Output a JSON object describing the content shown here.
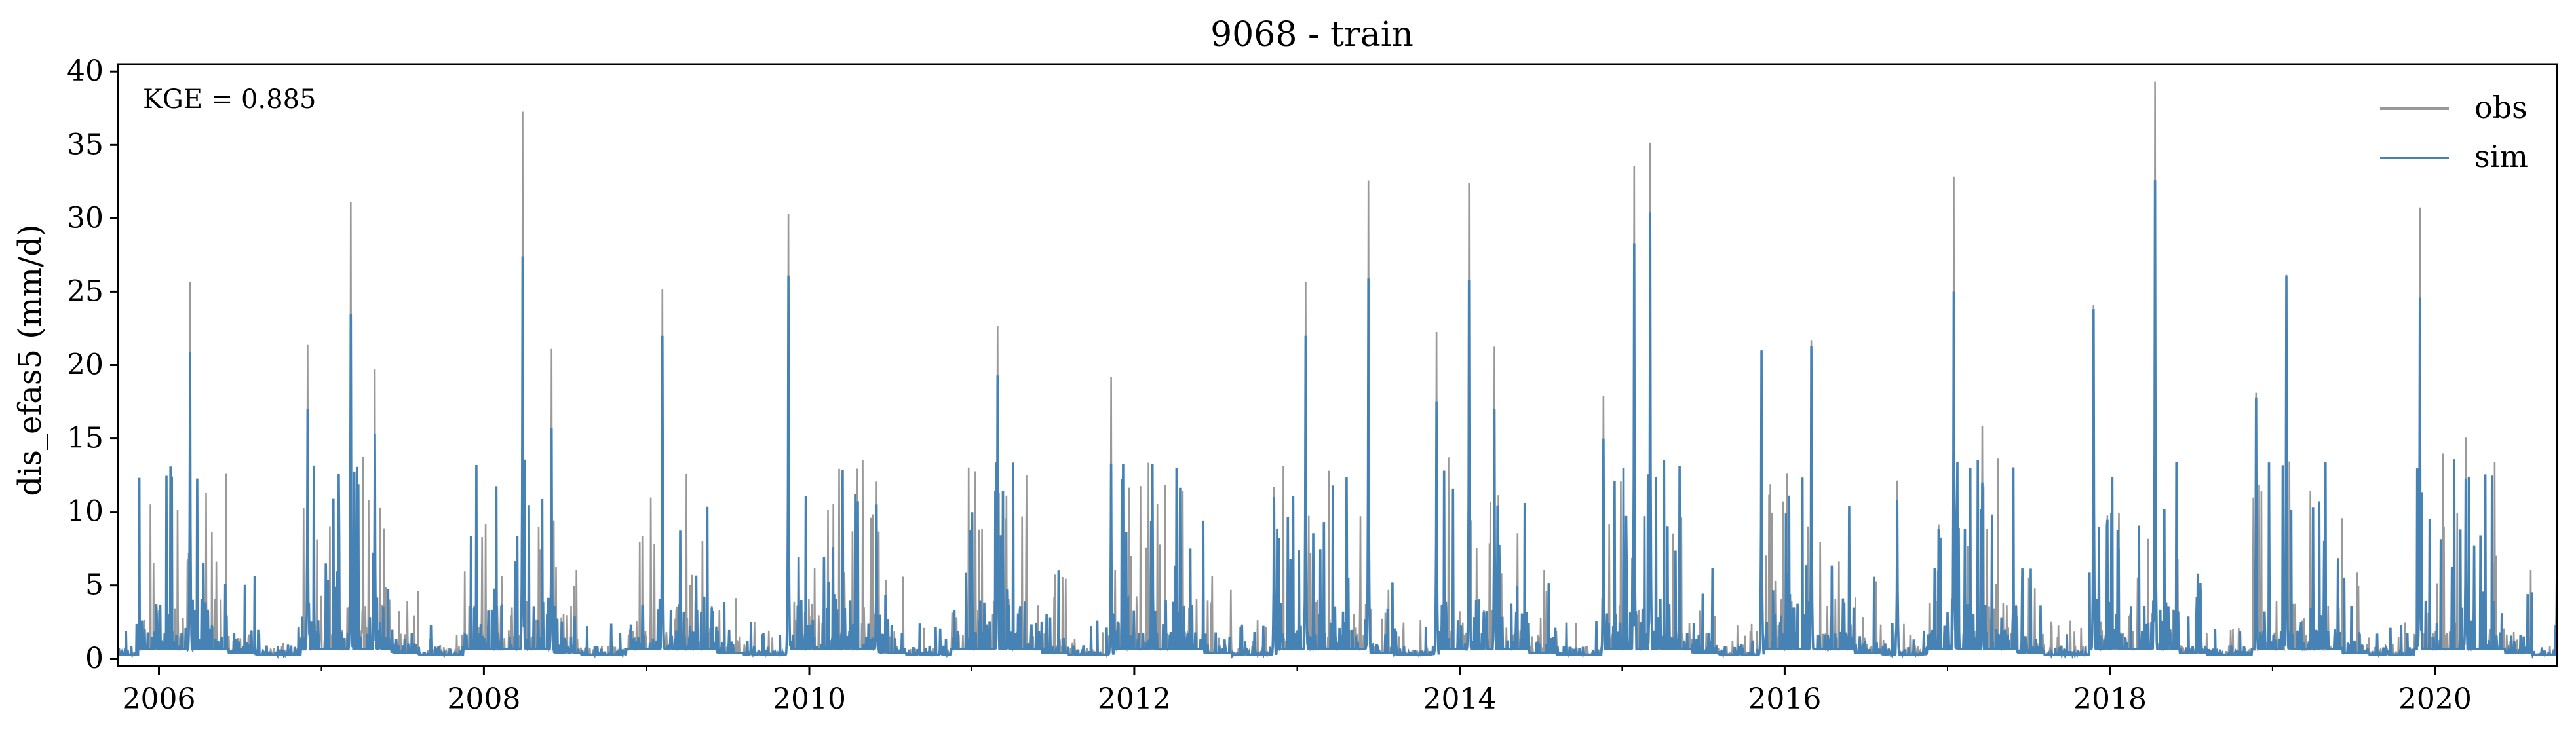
{
  "chart_data": {
    "type": "line",
    "title": "9068 - train",
    "xlabel": "",
    "ylabel": "dis_efas5 (mm/d)",
    "annotation": "KGE = 0.885",
    "x_range": [
      "2005-10-01",
      "2020-10-01"
    ],
    "ylim": [
      -0.5,
      40.5
    ],
    "y_ticks": [
      0,
      5,
      10,
      15,
      20,
      25,
      30,
      35,
      40
    ],
    "y_tick_labels": [
      "0",
      "5",
      "10",
      "15",
      "20",
      "25",
      "30",
      "35",
      "40"
    ],
    "x_major_ticks": [
      "2006-01-01",
      "2008-01-01",
      "2010-01-01",
      "2012-01-01",
      "2014-01-01",
      "2016-01-01",
      "2018-01-01",
      "2020-01-01"
    ],
    "x_tick_labels": [
      "2006",
      "2008",
      "2010",
      "2012",
      "2014",
      "2016",
      "2018",
      "2020"
    ],
    "x_minor_ticks": [
      "2007-01-01",
      "2009-01-01",
      "2011-01-01",
      "2013-01-01",
      "2015-01-01",
      "2017-01-01",
      "2019-01-01"
    ],
    "grid": false,
    "legend_position": "top-right",
    "series": [
      {
        "name": "obs",
        "color": "#999999",
        "x": [
          "2005-10-01",
          "2006-03-12",
          "2006-12-01",
          "2007-03-08",
          "2007-05-01",
          "2008-03-28",
          "2008-06-01",
          "2009-02-05",
          "2009-11-15",
          "2010-06-01",
          "2011-02-28",
          "2011-11-10",
          "2012-11-10",
          "2013-01-20",
          "2013-06-10",
          "2013-11-10",
          "2014-01-22",
          "2014-03-20",
          "2014-11-20",
          "2015-01-28",
          "2015-03-05",
          "2015-11-10",
          "2016-03-01",
          "2016-09-10",
          "2017-01-15",
          "2017-03-20",
          "2017-11-25",
          "2018-04-12",
          "2018-11-25",
          "2019-02-01",
          "2019-11-28",
          "2020-03-10",
          "2020-10-01"
        ],
        "y": [
          0.3,
          24.8,
          21.6,
          31.3,
          20.0,
          36.0,
          21.0,
          25.1,
          29.4,
          12.1,
          23.1,
          19.5,
          11.8,
          25.4,
          32.0,
          22.0,
          31.2,
          20.6,
          17.6,
          33.8,
          35.8,
          21.0,
          21.3,
          11.7,
          33.4,
          15.9,
          23.8,
          38.4,
          18.3,
          26.1,
          29.9,
          15.2,
          6.8
        ]
      },
      {
        "name": "sim",
        "color": "#4682b4",
        "x": [
          "2005-10-01",
          "2006-03-12",
          "2006-12-01",
          "2007-03-08",
          "2007-05-01",
          "2008-03-28",
          "2008-06-01",
          "2009-02-05",
          "2009-11-15",
          "2010-06-01",
          "2011-02-28",
          "2011-11-10",
          "2012-11-10",
          "2013-01-20",
          "2013-06-10",
          "2013-11-10",
          "2014-01-22",
          "2014-03-20",
          "2014-11-20",
          "2015-01-28",
          "2015-03-05",
          "2015-11-10",
          "2016-03-01",
          "2016-09-10",
          "2017-01-15",
          "2017-03-20",
          "2017-11-25",
          "2018-04-12",
          "2018-11-25",
          "2019-02-01",
          "2019-11-28",
          "2020-03-10",
          "2020-10-01"
        ],
        "y": [
          0.3,
          20.9,
          17.0,
          23.5,
          15.3,
          27.4,
          15.7,
          22.0,
          26.1,
          10.5,
          19.3,
          13.3,
          11.0,
          22.0,
          25.9,
          17.5,
          25.8,
          17.0,
          15.0,
          28.3,
          30.4,
          21.0,
          21.3,
          10.8,
          25.0,
          12.0,
          23.8,
          32.6,
          17.8,
          26.1,
          24.6,
          12.0,
          6.6
        ]
      }
    ]
  }
}
